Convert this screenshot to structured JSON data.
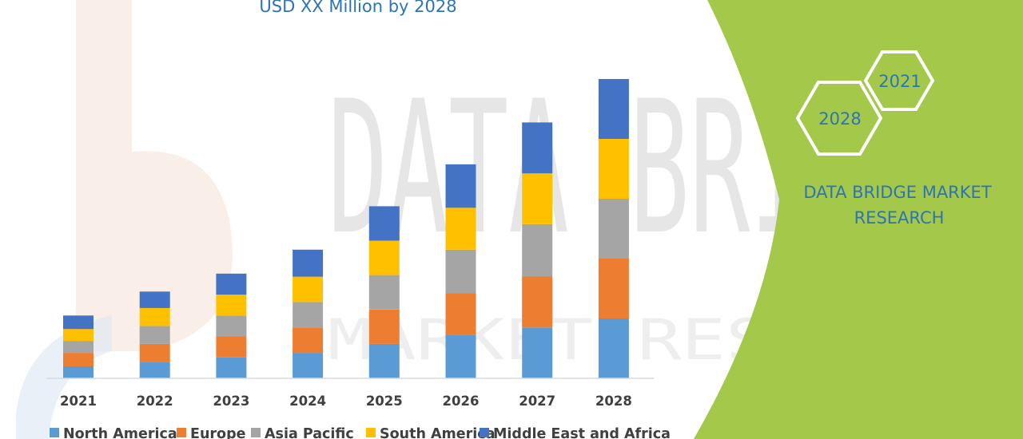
{
  "brand": {
    "name_line1": "DATA BRIDGE MARKET",
    "name_line2": "RESEARCH",
    "hex_years": [
      "2028",
      "2021"
    ],
    "watermark_main": "DATA BRIDGE",
    "watermark_sub": "MARKET RESEARCH",
    "panel_color": "#a4c84a"
  },
  "chart_data": {
    "type": "bar",
    "stacked": true,
    "title": "USD XX Million by 2028",
    "categories": [
      "2021",
      "2022",
      "2023",
      "2024",
      "2025",
      "2026",
      "2027",
      "2028"
    ],
    "ylim": [
      0,
      100
    ],
    "grid": false,
    "legend_position": "bottom",
    "series": [
      {
        "name": "North America",
        "color": "#5b9bd5",
        "values": [
          4,
          5.5,
          7,
          8.5,
          11.5,
          14.5,
          17,
          20
        ]
      },
      {
        "name": "Europe",
        "color": "#ed7d31",
        "values": [
          4.5,
          6,
          7,
          8.5,
          11.5,
          14,
          17,
          20
        ]
      },
      {
        "name": "Asia Pacific",
        "color": "#a5a5a5",
        "values": [
          4,
          6,
          7,
          8.5,
          11.5,
          14.5,
          17.5,
          20
        ]
      },
      {
        "name": "South America",
        "color": "#ffc000",
        "values": [
          4,
          6,
          7,
          8.5,
          11.5,
          14,
          17,
          20
        ]
      },
      {
        "name": "Middle East and Africa",
        "color": "#4472c4",
        "values": [
          4.5,
          5.5,
          7,
          9,
          11.5,
          14.5,
          17,
          20
        ]
      }
    ]
  }
}
